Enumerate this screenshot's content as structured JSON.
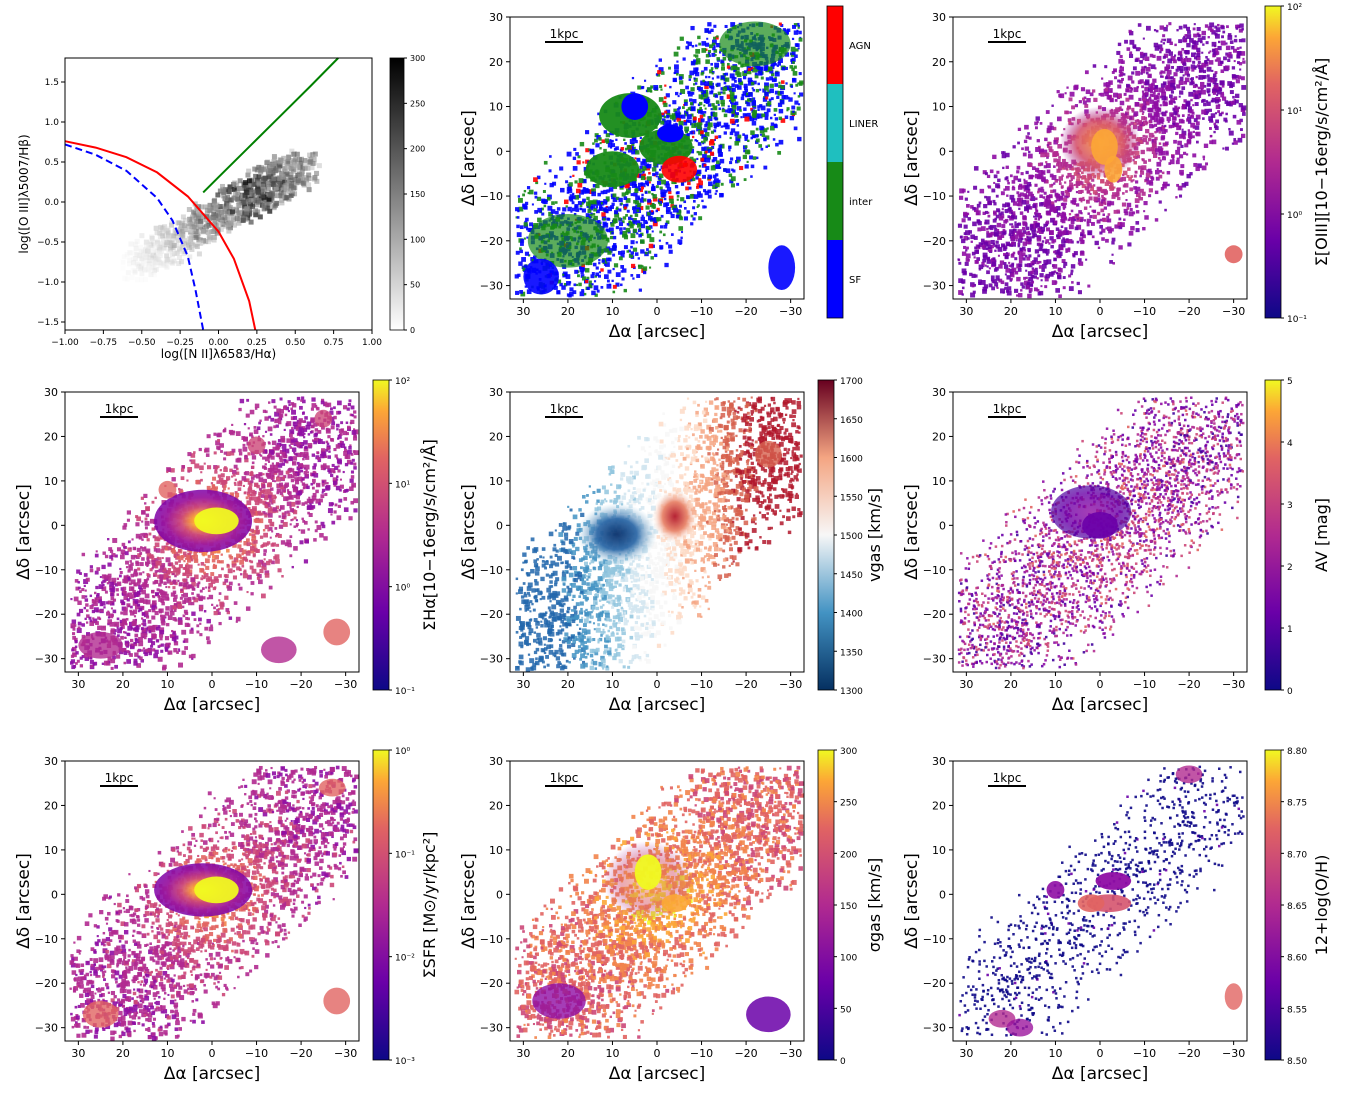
{
  "panels": [
    {
      "id": "bpt",
      "xlabel": "log([N II]λ6583/Hα)",
      "ylabel": "log([O III]λ5007/Hβ)",
      "xticks": [
        "−1.00",
        "−0.75",
        "−0.50",
        "−0.25",
        "0.00",
        "0.25",
        "0.50",
        "0.75",
        "1.00"
      ],
      "yticks": [
        "1.5",
        "1.0",
        "0.5",
        "0.0",
        "−0.5",
        "−1.0",
        "−1.5"
      ],
      "cbar_ticks": [
        "300",
        "250",
        "200",
        "150",
        "100",
        "50",
        "0"
      ]
    },
    {
      "id": "classification",
      "xlabel": "Δα [arcsec]",
      "ylabel": "Δδ [arcsec]",
      "scalebar": "1kpc",
      "class_labels": [
        "AGN",
        "LINER",
        "inter",
        "SF"
      ],
      "class_colors": [
        "#ff0000",
        "#1fbfbf",
        "#178a17",
        "#0000ff"
      ]
    },
    {
      "id": "oiii_flux",
      "xlabel": "Δα [arcsec]",
      "ylabel": "Δδ [arcsec]",
      "scalebar": "1kpc",
      "cbar_label": "Σ[OIII][10−16erg/s/cm²/Å]",
      "cbar_ticks": [
        "10²",
        "10¹",
        "10⁰",
        "10⁻¹"
      ]
    },
    {
      "id": "halpha_flux",
      "xlabel": "Δα [arcsec]",
      "ylabel": "Δδ [arcsec]",
      "scalebar": "1kpc",
      "cbar_label": "ΣHα[10−16erg/s/cm²/Å]",
      "cbar_ticks": [
        "10²",
        "10¹",
        "10⁰",
        "10⁻¹"
      ]
    },
    {
      "id": "velocity",
      "xlabel": "Δα [arcsec]",
      "ylabel": "Δδ [arcsec]",
      "scalebar": "1kpc",
      "cbar_label": "vgas [km/s]",
      "cbar_ticks": [
        "1700",
        "1650",
        "1600",
        "1550",
        "1500",
        "1450",
        "1400",
        "1350",
        "1300"
      ]
    },
    {
      "id": "extinction",
      "xlabel": "Δα [arcsec]",
      "ylabel": "Δδ [arcsec]",
      "scalebar": "1kpc",
      "cbar_label": "AV [mag]",
      "cbar_ticks": [
        "5",
        "4",
        "3",
        "2",
        "1",
        "0"
      ]
    },
    {
      "id": "sfr",
      "xlabel": "Δα [arcsec]",
      "ylabel": "Δδ [arcsec]",
      "scalebar": "1kpc",
      "cbar_label": "ΣSFR [M⊙/yr/kpc²]",
      "cbar_ticks": [
        "10⁰",
        "10⁻¹",
        "10⁻²",
        "10⁻³"
      ]
    },
    {
      "id": "dispersion",
      "xlabel": "Δα [arcsec]",
      "ylabel": "Δδ [arcsec]",
      "scalebar": "1kpc",
      "cbar_label": "σgas [km/s]",
      "cbar_ticks": [
        "300",
        "250",
        "200",
        "150",
        "100",
        "50",
        "0"
      ]
    },
    {
      "id": "metallicity",
      "xlabel": "Δα [arcsec]",
      "ylabel": "Δδ [arcsec]",
      "scalebar": "1kpc",
      "cbar_label": "12+log(O/H)",
      "cbar_ticks": [
        "8.80",
        "8.75",
        "8.70",
        "8.65",
        "8.60",
        "8.55",
        "8.50"
      ]
    }
  ],
  "map_axes": {
    "xticks": [
      "30",
      "20",
      "10",
      "0",
      "−10",
      "−20",
      "−30"
    ],
    "yticks": [
      "30",
      "20",
      "10",
      "0",
      "−10",
      "−20",
      "−30"
    ]
  },
  "chart_data": [
    {
      "type": "heatmap",
      "subtype": "BPT diagnostic diagram (2D histogram)",
      "xlabel": "log([N II]λ6583/Hα)",
      "ylabel": "log([O III]λ5007/Hβ)",
      "xlim": [
        -1.0,
        1.0
      ],
      "ylim": [
        -1.6,
        1.8
      ],
      "colorbar": {
        "range": [
          0,
          300
        ],
        "cmap": "Greys"
      },
      "curves": [
        {
          "style": "dashed",
          "color": "#0000ff",
          "points": [
            [
              -1.0,
              0.72
            ],
            [
              -0.8,
              0.59
            ],
            [
              -0.6,
              0.39
            ],
            [
              -0.4,
              0.05
            ],
            [
              -0.3,
              -0.23
            ],
            [
              -0.2,
              -0.68
            ],
            [
              -0.15,
              -1.1
            ],
            [
              -0.1,
              -1.6
            ]
          ]
        },
        {
          "style": "solid",
          "color": "#ff0000",
          "points": [
            [
              -1.0,
              0.76
            ],
            [
              -0.8,
              0.68
            ],
            [
              -0.6,
              0.56
            ],
            [
              -0.4,
              0.37
            ],
            [
              -0.2,
              0.07
            ],
            [
              0.0,
              -0.37
            ],
            [
              0.1,
              -0.71
            ],
            [
              0.2,
              -1.24
            ],
            [
              0.24,
              -1.6
            ]
          ]
        },
        {
          "style": "solid",
          "color": "#008000",
          "points": [
            [
              -0.1,
              0.12
            ],
            [
              0.0,
              0.31
            ],
            [
              0.2,
              0.69
            ],
            [
              0.4,
              1.07
            ],
            [
              0.6,
              1.45
            ],
            [
              0.78,
              1.8
            ]
          ]
        }
      ]
    },
    {
      "type": "heatmap",
      "title_colorbar": "",
      "colorbar_categories": [
        "AGN",
        "LINER",
        "inter",
        "SF"
      ],
      "xlim": [
        33,
        -33
      ],
      "ylim": [
        -33,
        30
      ]
    },
    {
      "type": "heatmap",
      "cbar_label": "Σ[OIII][10−16erg/s/cm²/Å]",
      "colorbar": {
        "range": [
          0.1,
          100
        ],
        "scale": "log",
        "cmap": "plasma"
      },
      "xlim": [
        33,
        -33
      ],
      "ylim": [
        -33,
        30
      ]
    },
    {
      "type": "heatmap",
      "cbar_label": "ΣHα[10−16erg/s/cm²/Å]",
      "colorbar": {
        "range": [
          0.1,
          100
        ],
        "scale": "log",
        "cmap": "plasma"
      },
      "xlim": [
        33,
        -33
      ],
      "ylim": [
        -33,
        30
      ]
    },
    {
      "type": "heatmap",
      "cbar_label": "vgas [km/s]",
      "colorbar": {
        "range": [
          1300,
          1700
        ],
        "scale": "linear",
        "cmap": "RdBu_r"
      },
      "xlim": [
        33,
        -33
      ],
      "ylim": [
        -33,
        30
      ]
    },
    {
      "type": "heatmap",
      "cbar_label": "AV [mag]",
      "colorbar": {
        "range": [
          0,
          5
        ],
        "scale": "linear",
        "cmap": "plasma"
      },
      "xlim": [
        33,
        -33
      ],
      "ylim": [
        -33,
        30
      ]
    },
    {
      "type": "heatmap",
      "cbar_label": "ΣSFR [M⊙/yr/kpc²]",
      "colorbar": {
        "range": [
          0.001,
          1.5
        ],
        "scale": "log",
        "cmap": "plasma"
      },
      "xlim": [
        33,
        -33
      ],
      "ylim": [
        -33,
        30
      ]
    },
    {
      "type": "heatmap",
      "cbar_label": "σgas [km/s]",
      "colorbar": {
        "range": [
          0,
          300
        ],
        "scale": "linear",
        "cmap": "plasma"
      },
      "xlim": [
        33,
        -33
      ],
      "ylim": [
        -33,
        30
      ]
    },
    {
      "type": "heatmap",
      "cbar_label": "12+log(O/H)",
      "colorbar": {
        "range": [
          8.5,
          8.8
        ],
        "scale": "linear",
        "cmap": "plasma"
      },
      "xlim": [
        33,
        -33
      ],
      "ylim": [
        -33,
        30
      ]
    }
  ]
}
